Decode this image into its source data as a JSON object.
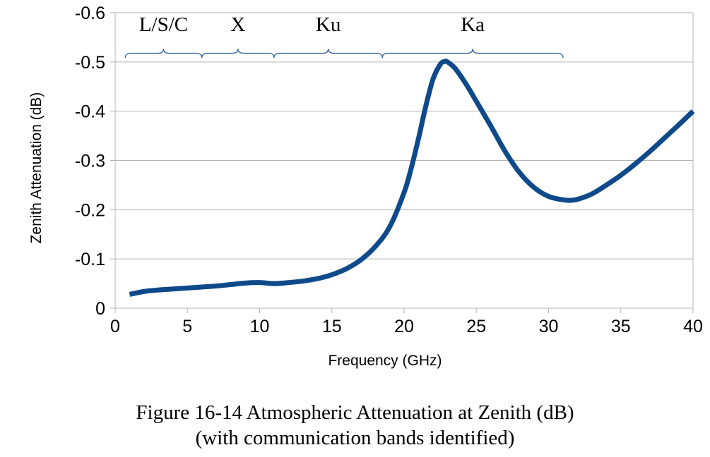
{
  "caption": {
    "line1": "Figure 16-14 Atmospheric Attenuation at Zenith (dB)",
    "line2": "(with communication bands identified)"
  },
  "chart_data": {
    "type": "line",
    "xlabel": "Frequency (GHz)",
    "ylabel": "Zenith Attenuation (dB)",
    "xlim": [
      0,
      40
    ],
    "ylim": [
      0,
      -0.6
    ],
    "x_ticks": [
      0,
      5,
      10,
      15,
      20,
      25,
      30,
      35,
      40
    ],
    "x_tick_labels": [
      "0",
      "5",
      "10",
      "15",
      "20",
      "25",
      "30",
      "35",
      "40"
    ],
    "y_ticks": [
      0,
      -0.1,
      -0.2,
      -0.3,
      -0.4,
      -0.5,
      -0.6
    ],
    "y_tick_labels": [
      "0",
      "-0.1",
      "-0.2",
      "-0.3",
      "-0.4",
      "-0.5",
      "-0.6"
    ],
    "grid": true,
    "line_color": "#0e4a8a",
    "brace_color": "#2f5f9c",
    "series": [
      {
        "x": [
          1,
          2,
          3,
          4,
          5,
          6,
          7,
          8,
          9,
          10,
          11,
          12,
          13,
          14,
          15,
          16,
          17,
          18,
          19,
          20,
          20.5,
          21,
          21.5,
          22,
          22.5,
          22.8,
          23,
          23.5,
          24,
          24.5,
          25,
          26,
          27,
          28,
          29,
          30,
          31,
          31.5,
          32,
          33,
          34,
          35,
          36,
          37,
          38,
          39,
          40
        ],
        "values": [
          -0.028,
          -0.034,
          -0.037,
          -0.039,
          -0.041,
          -0.043,
          -0.045,
          -0.048,
          -0.051,
          -0.052,
          -0.05,
          -0.052,
          -0.055,
          -0.06,
          -0.068,
          -0.08,
          -0.098,
          -0.125,
          -0.165,
          -0.235,
          -0.285,
          -0.345,
          -0.41,
          -0.465,
          -0.495,
          -0.501,
          -0.5,
          -0.488,
          -0.468,
          -0.445,
          -0.42,
          -0.37,
          -0.318,
          -0.275,
          -0.245,
          -0.227,
          -0.22,
          -0.219,
          -0.221,
          -0.232,
          -0.25,
          -0.27,
          -0.293,
          -0.318,
          -0.345,
          -0.372,
          -0.4
        ]
      }
    ],
    "bands": [
      {
        "label": "L/S/C",
        "from": 0.7,
        "to": 6.0
      },
      {
        "label": "X",
        "from": 6.0,
        "to": 11.0
      },
      {
        "label": "Ku",
        "from": 11.0,
        "to": 18.5
      },
      {
        "label": "Ka",
        "from": 18.5,
        "to": 31.0
      }
    ]
  }
}
